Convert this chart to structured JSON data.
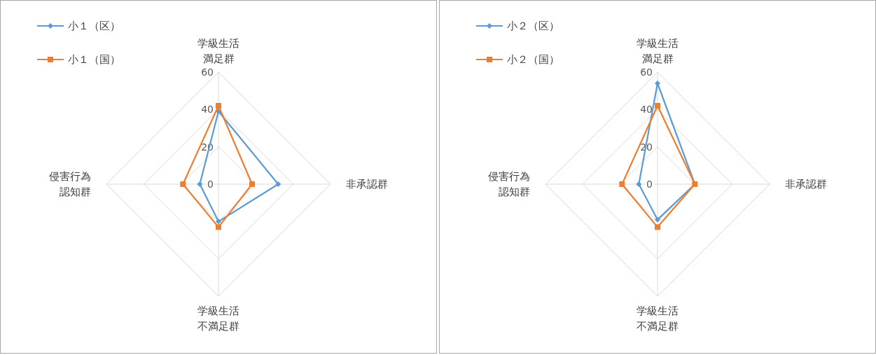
{
  "chart_data": [
    {
      "type": "radar",
      "categories": [
        "学級生活満足群",
        "非承認群",
        "学級生活不満足群",
        "侵害行為認知群"
      ],
      "ylim": [
        0,
        60
      ],
      "yticks": [
        0,
        20,
        40,
        60
      ],
      "grid": true,
      "legend": "top left",
      "series": [
        {
          "name": "小１（区）",
          "color": "#5b9bd5",
          "marker": "diamond",
          "values": [
            39,
            32,
            20,
            10
          ]
        },
        {
          "name": "小１（国）",
          "color": "#ed7d31",
          "marker": "square",
          "values": [
            42,
            18,
            23,
            19
          ]
        }
      ]
    },
    {
      "type": "radar",
      "categories": [
        "学級生活満足群",
        "非承認群",
        "学級生活不満足群",
        "侵害行為認知群"
      ],
      "ylim": [
        0,
        60
      ],
      "yticks": [
        0,
        20,
        40,
        60
      ],
      "grid": true,
      "legend": "top left",
      "series": [
        {
          "name": "小２（区）",
          "color": "#5b9bd5",
          "marker": "diamond",
          "values": [
            54,
            20,
            19,
            10
          ]
        },
        {
          "name": "小２（国）",
          "color": "#ed7d31",
          "marker": "square",
          "values": [
            42,
            20,
            23,
            19
          ]
        }
      ]
    }
  ]
}
